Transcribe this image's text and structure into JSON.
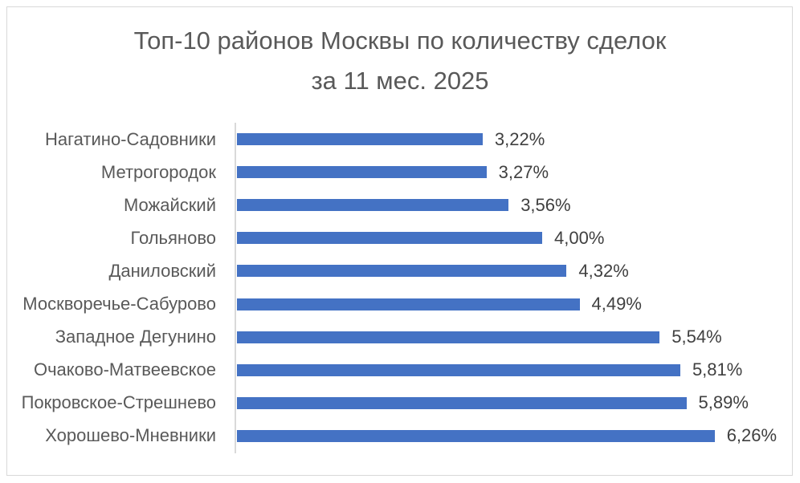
{
  "title": {
    "line1": "Топ-10 районов Москвы по количеству сделок",
    "line2": "за 11 мес. 2025"
  },
  "chart_data": {
    "type": "bar",
    "orientation": "horizontal",
    "title": "Топ-10 районов Москвы по количеству сделок за 11 мес. 2025",
    "categories": [
      "Нагатино-Садовники",
      "Метрогородок",
      "Можайский",
      "Гольяново",
      "Даниловский",
      "Москворечье-Сабурово",
      "Западное Дегунино",
      "Очаково-Матвеевское",
      "Покровское-Стрешнево",
      "Хорошево-Мневники"
    ],
    "values": [
      3.22,
      3.27,
      3.56,
      4.0,
      4.32,
      4.49,
      5.54,
      5.81,
      5.89,
      6.26
    ],
    "value_labels": [
      "3,22%",
      "3,27%",
      "3,56%",
      "4,00%",
      "4,32%",
      "4,49%",
      "5,54%",
      "5,81%",
      "5,89%",
      "6,26%"
    ],
    "xlabel": "",
    "ylabel": "",
    "xlim": [
      0,
      7
    ],
    "grid": false,
    "legend": false,
    "value_unit": "%",
    "decimal_separator": ","
  },
  "colors": {
    "bar": "#4472C4",
    "title_text": "#595959",
    "category_text": "#595959",
    "value_text": "#404040",
    "axis_line": "#D9D9D9",
    "frame_border": "#D9D9D9",
    "background": "#FFFFFF"
  }
}
